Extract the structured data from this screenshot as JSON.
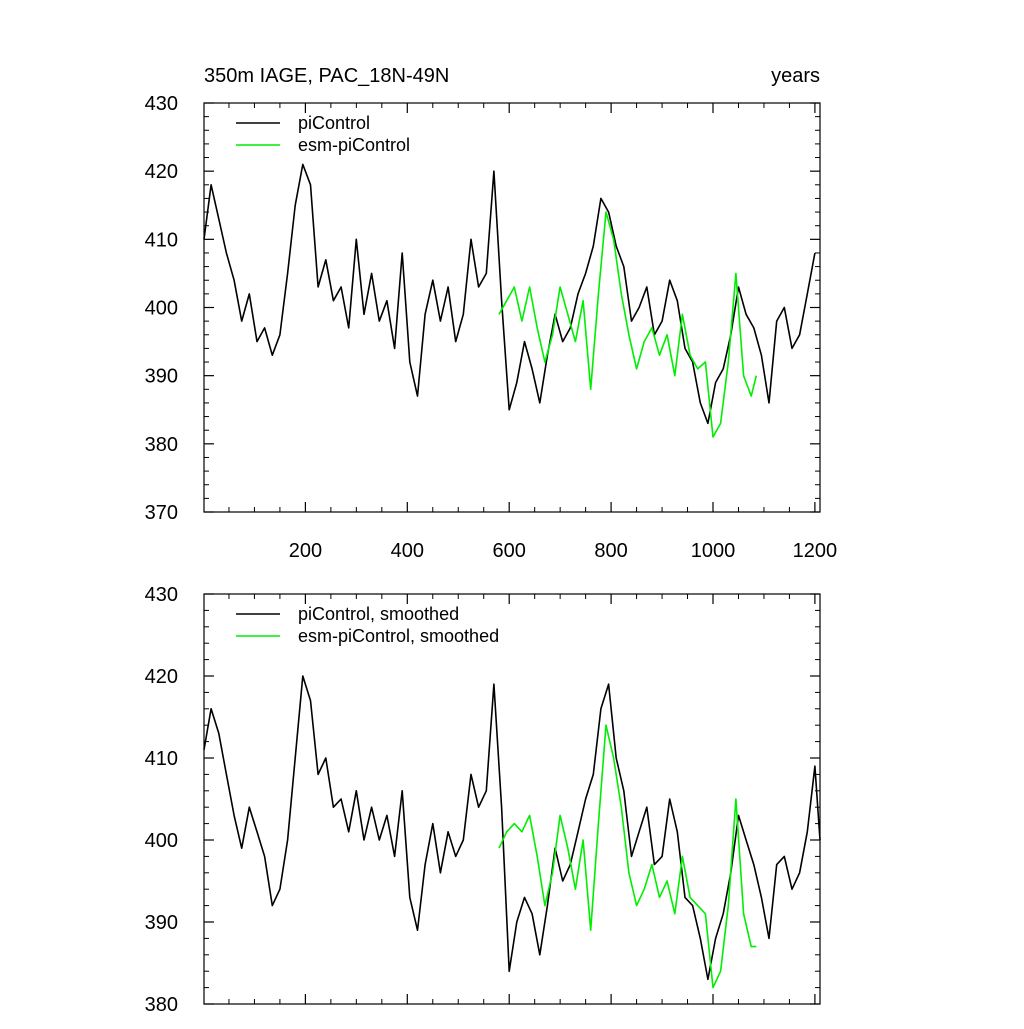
{
  "header": {
    "left": "350m IAGE, PAC_18N-49N",
    "right": "years"
  },
  "colors": {
    "piControl": "#000000",
    "esm_piControl": "#00ee00",
    "axis": "#000000"
  },
  "chart_data": [
    {
      "type": "line",
      "x_range": [
        1,
        1210
      ],
      "ylim": [
        370,
        430
      ],
      "y_ticks": [
        "370",
        "380",
        "390",
        "400",
        "410",
        "420",
        "430"
      ],
      "y_tick_values": [
        370,
        380,
        390,
        400,
        410,
        420,
        430
      ],
      "x_ticks": [
        "200",
        "400",
        "600",
        "800",
        "1000",
        "1200"
      ],
      "x_tick_values": [
        200,
        400,
        600,
        800,
        1000,
        1200
      ],
      "x_tick_labels_shown": true,
      "legend": "top-left",
      "grid": false,
      "series": [
        {
          "name": "piControl",
          "color": "#000000",
          "x": [
            1,
            15,
            30,
            45,
            60,
            75,
            90,
            105,
            120,
            135,
            150,
            165,
            180,
            195,
            210,
            225,
            240,
            255,
            270,
            285,
            300,
            315,
            330,
            345,
            360,
            375,
            390,
            405,
            420,
            435,
            450,
            465,
            480,
            495,
            510,
            525,
            540,
            555,
            570,
            585,
            600,
            615,
            630,
            645,
            660,
            675,
            690,
            705,
            720,
            735,
            750,
            765,
            780,
            795,
            810,
            825,
            840,
            855,
            870,
            885,
            900,
            915,
            930,
            945,
            960,
            975,
            990,
            1005,
            1020,
            1035,
            1050,
            1065,
            1080,
            1095,
            1110,
            1125,
            1140,
            1155,
            1170,
            1185,
            1200
          ],
          "values": [
            410,
            418,
            413,
            408,
            404,
            398,
            402,
            395,
            397,
            393,
            396,
            405,
            415,
            421,
            418,
            403,
            407,
            401,
            403,
            397,
            410,
            399,
            405,
            398,
            401,
            394,
            408,
            392,
            387,
            399,
            404,
            398,
            403,
            395,
            399,
            410,
            403,
            405,
            420,
            401,
            385,
            389,
            395,
            391,
            386,
            393,
            399,
            395,
            397,
            402,
            405,
            409,
            416,
            414,
            409,
            406,
            398,
            400,
            403,
            396,
            398,
            404,
            401,
            394,
            392,
            386,
            383,
            389,
            391,
            396,
            403,
            399,
            397,
            393,
            386,
            398,
            400,
            394,
            396,
            402,
            408
          ]
        },
        {
          "name": "esm-piControl",
          "color": "#00ee00",
          "x": [
            580,
            595,
            610,
            625,
            640,
            655,
            670,
            685,
            700,
            715,
            730,
            745,
            760,
            775,
            790,
            805,
            820,
            835,
            850,
            865,
            880,
            895,
            910,
            925,
            940,
            955,
            970,
            985,
            1000,
            1015,
            1030,
            1045,
            1060,
            1075,
            1085
          ],
          "values": [
            399,
            401,
            403,
            398,
            403,
            397,
            392,
            396,
            403,
            399,
            395,
            401,
            388,
            402,
            414,
            410,
            402,
            396,
            391,
            395,
            397,
            393,
            396,
            390,
            399,
            393,
            391,
            392,
            381,
            383,
            392,
            405,
            390,
            387,
            390
          ]
        }
      ]
    },
    {
      "type": "line",
      "x_range": [
        1,
        1210
      ],
      "ylim": [
        380,
        430
      ],
      "y_ticks": [
        "380",
        "390",
        "400",
        "410",
        "420",
        "430"
      ],
      "y_tick_values": [
        380,
        390,
        400,
        410,
        420,
        430
      ],
      "x_tick_values": [
        200,
        400,
        600,
        800,
        1000,
        1200
      ],
      "x_tick_labels_shown": false,
      "legend": "top-left",
      "grid": false,
      "series": [
        {
          "name": "piControl, smoothed",
          "color": "#000000",
          "x": [
            1,
            15,
            30,
            45,
            60,
            75,
            90,
            105,
            120,
            135,
            150,
            165,
            180,
            195,
            210,
            225,
            240,
            255,
            270,
            285,
            300,
            315,
            330,
            345,
            360,
            375,
            390,
            405,
            420,
            435,
            450,
            465,
            480,
            495,
            510,
            525,
            540,
            555,
            570,
            585,
            600,
            615,
            630,
            645,
            660,
            675,
            690,
            705,
            720,
            735,
            750,
            765,
            780,
            795,
            810,
            825,
            840,
            855,
            870,
            885,
            900,
            915,
            930,
            945,
            960,
            975,
            990,
            1005,
            1020,
            1035,
            1050,
            1065,
            1080,
            1095,
            1110,
            1125,
            1140,
            1155,
            1170,
            1185,
            1200,
            1210
          ],
          "values": [
            411,
            416,
            413,
            408,
            403,
            399,
            404,
            401,
            398,
            392,
            394,
            400,
            410,
            420,
            417,
            408,
            410,
            404,
            405,
            401,
            406,
            400,
            404,
            400,
            403,
            398,
            406,
            393,
            389,
            397,
            402,
            396,
            401,
            398,
            400,
            408,
            404,
            406,
            419,
            404,
            384,
            390,
            393,
            391,
            386,
            392,
            399,
            395,
            397,
            401,
            405,
            408,
            416,
            419,
            410,
            406,
            398,
            401,
            404,
            397,
            398,
            405,
            401,
            393,
            392,
            388,
            383,
            388,
            391,
            396,
            403,
            400,
            397,
            393,
            388,
            397,
            398,
            394,
            396,
            401,
            409,
            400
          ]
        },
        {
          "name": "esm-piControl, smoothed",
          "color": "#00ee00",
          "x": [
            580,
            595,
            610,
            625,
            640,
            655,
            670,
            685,
            700,
            715,
            730,
            745,
            760,
            775,
            790,
            805,
            820,
            835,
            850,
            865,
            880,
            895,
            910,
            925,
            940,
            955,
            970,
            985,
            1000,
            1015,
            1030,
            1045,
            1060,
            1075,
            1085
          ],
          "values": [
            399,
            401,
            402,
            401,
            403,
            398,
            392,
            396,
            403,
            399,
            394,
            400,
            389,
            402,
            414,
            410,
            404,
            396,
            392,
            394,
            397,
            393,
            395,
            391,
            398,
            393,
            392,
            391,
            382,
            384,
            392,
            405,
            391,
            387,
            387
          ]
        }
      ]
    }
  ]
}
